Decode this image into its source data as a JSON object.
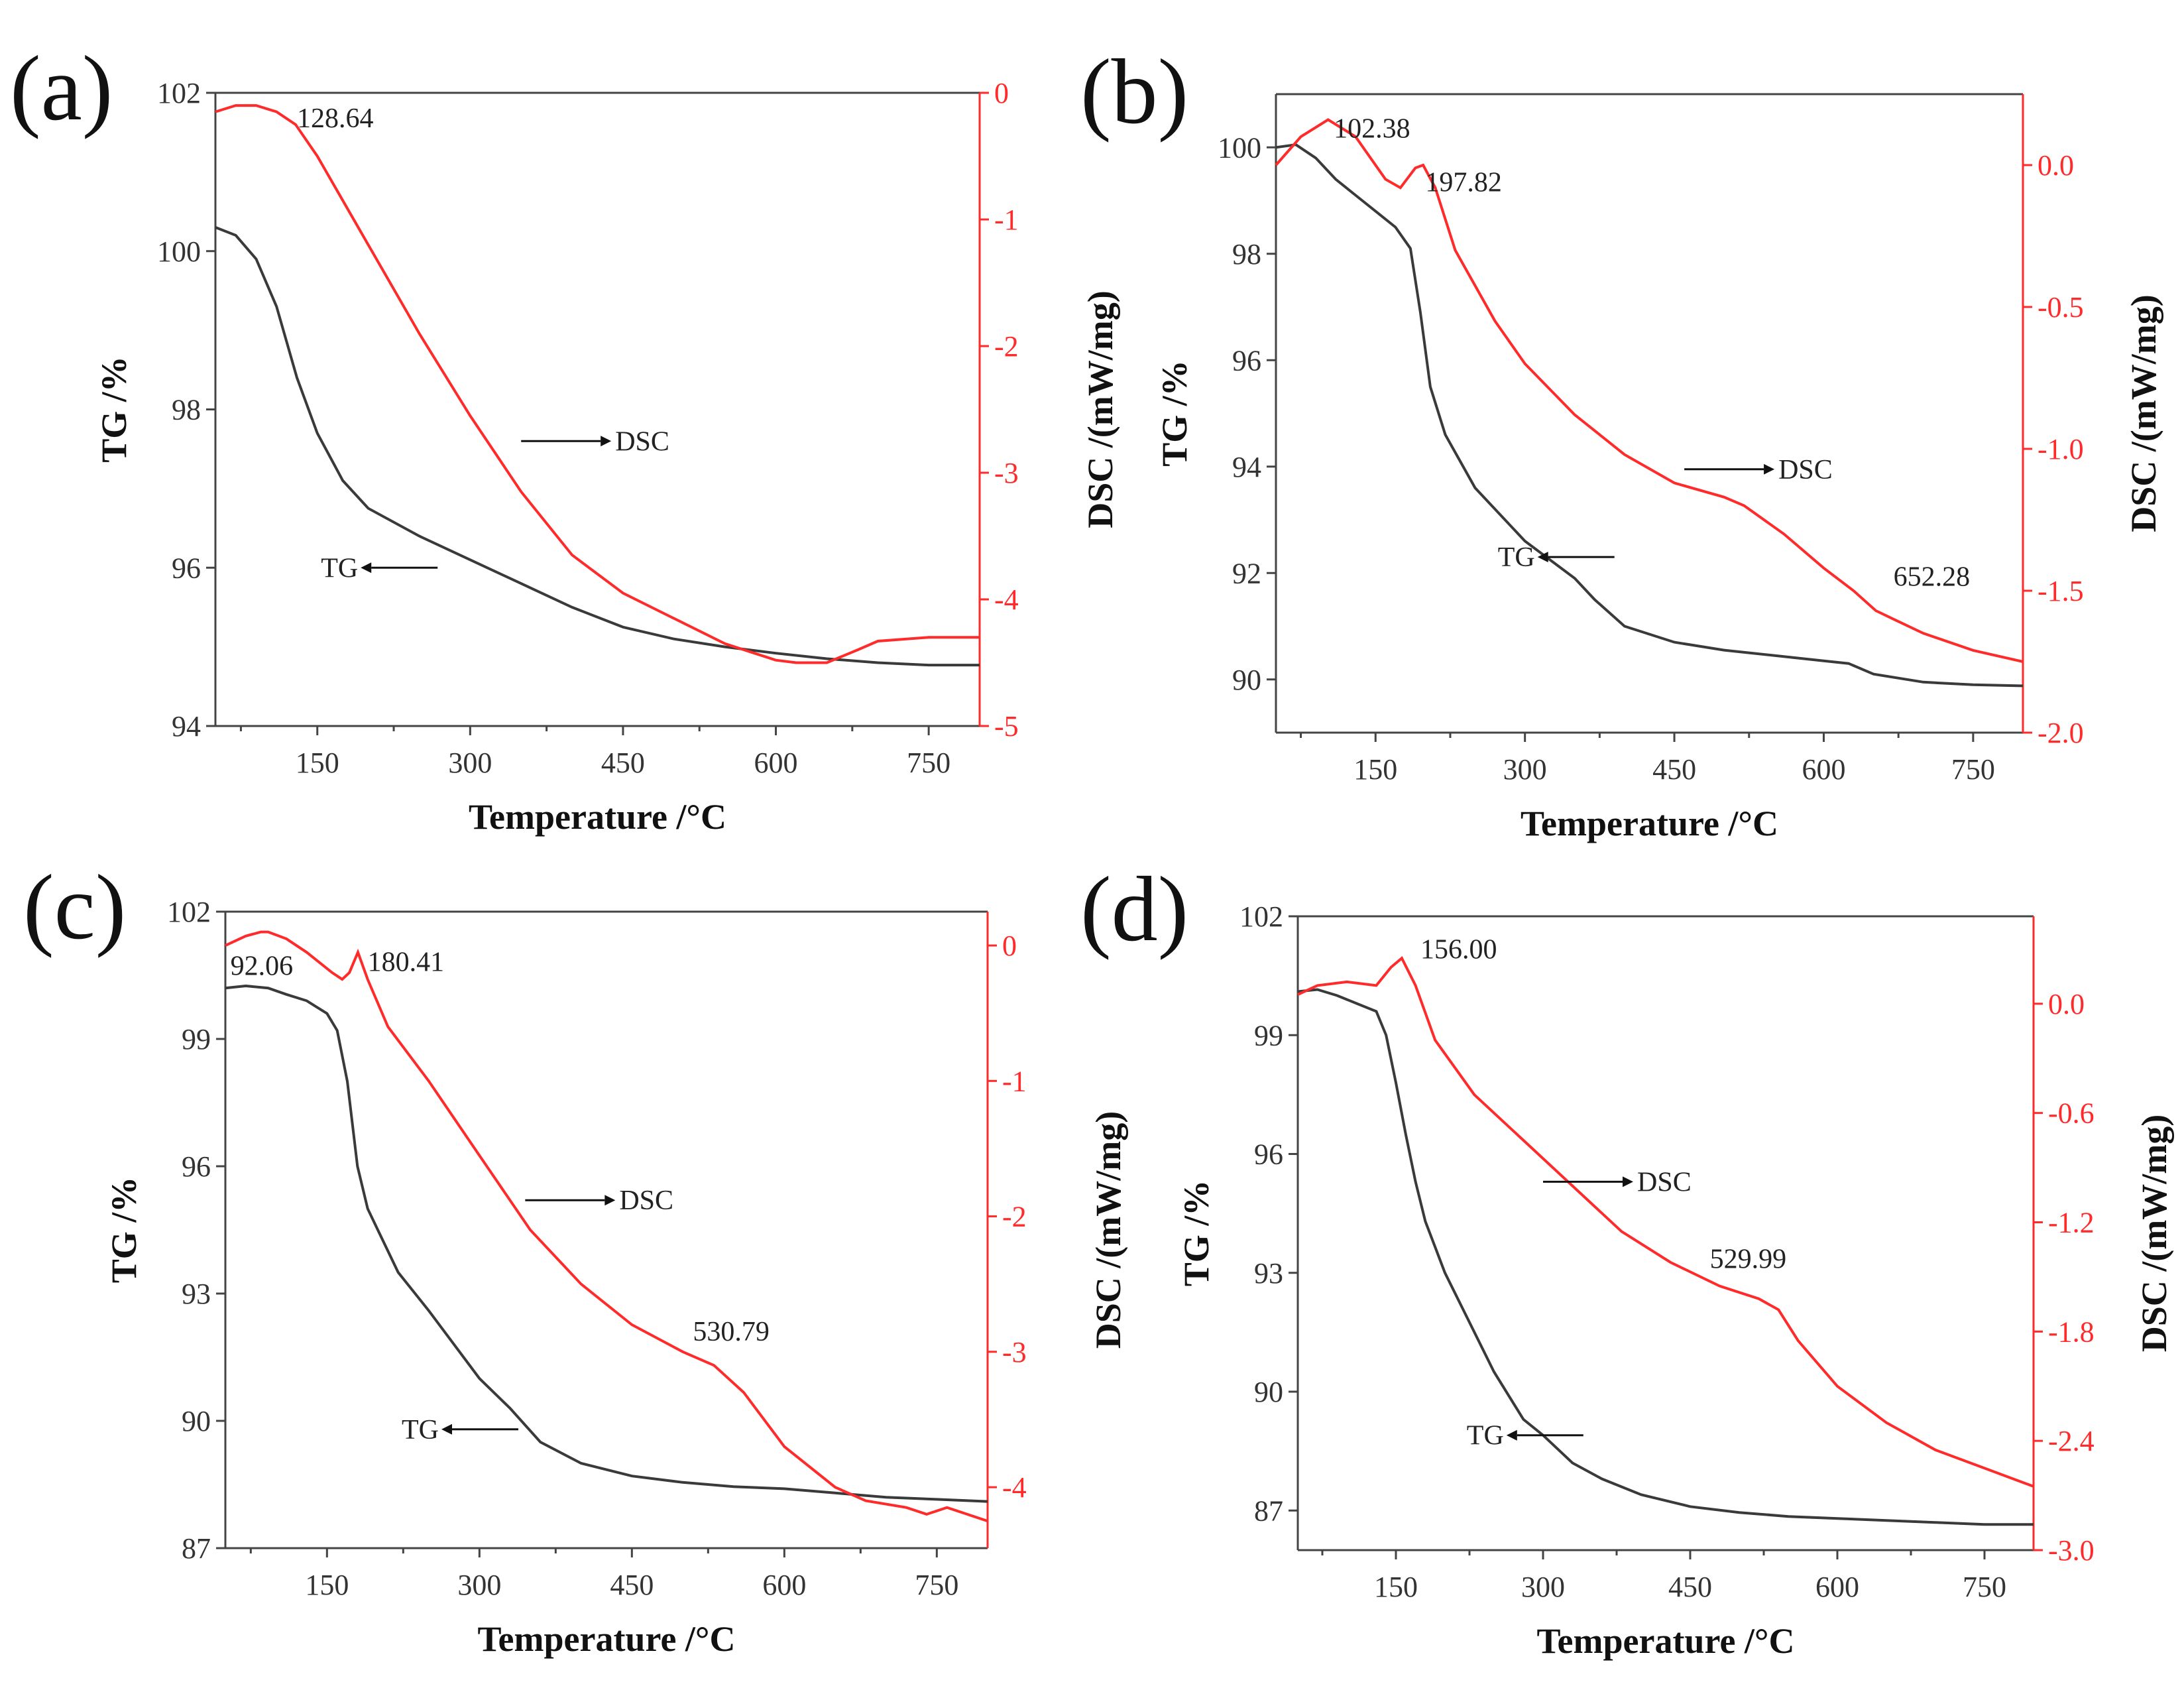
{
  "chart_data": [
    {
      "type": "line",
      "panel_label": "(a)",
      "xlabel": "Temperature /°C",
      "ylabel_left": "TG /%",
      "ylabel_right": "DSC /(mW/mg)",
      "xlim": [
        50,
        800
      ],
      "ylim_left": [
        94,
        102
      ],
      "ylim_right": [
        -5,
        0
      ],
      "xticks": [
        150,
        300,
        450,
        600,
        750
      ],
      "yticks_left": [
        94,
        96,
        98,
        100,
        102
      ],
      "yticks_right": [
        -5,
        -4,
        -3,
        -2,
        -1,
        0
      ],
      "ytick_decimals_right": 0,
      "series": [
        {
          "name": "TG",
          "axis": "left",
          "color": "#3a3a3a",
          "x": [
            50,
            70,
            90,
            110,
            130,
            150,
            175,
            200,
            250,
            300,
            350,
            400,
            450,
            500,
            550,
            600,
            650,
            700,
            750,
            800
          ],
          "y": [
            100.3,
            100.2,
            99.9,
            99.3,
            98.4,
            97.7,
            97.1,
            96.75,
            96.4,
            96.1,
            95.8,
            95.5,
            95.25,
            95.1,
            95.0,
            94.92,
            94.85,
            94.8,
            94.77,
            94.77
          ]
        },
        {
          "name": "DSC",
          "axis": "right",
          "color": "#ff2a2a",
          "x": [
            50,
            70,
            90,
            110,
            128.64,
            150,
            200,
            250,
            300,
            350,
            400,
            450,
            500,
            550,
            600,
            620,
            650,
            680,
            700,
            750,
            800
          ],
          "y": [
            -0.15,
            -0.1,
            -0.1,
            -0.15,
            -0.25,
            -0.5,
            -1.2,
            -1.9,
            -2.55,
            -3.15,
            -3.65,
            -3.95,
            -4.15,
            -4.35,
            -4.48,
            -4.5,
            -4.5,
            -4.4,
            -4.33,
            -4.3,
            -4.3
          ]
        }
      ],
      "annotations": [
        {
          "text": "128.64",
          "x": 130,
          "y_right": -0.2
        },
        {
          "text": "DSC",
          "type": "arrow-right",
          "x": 350,
          "y_left": 97.6
        },
        {
          "text": "TG",
          "type": "arrow-left",
          "x": 190,
          "y_left": 96.0
        }
      ]
    },
    {
      "type": "line",
      "panel_label": "(b)",
      "xlabel": "Temperature /°C",
      "ylabel_left": "TG /%",
      "ylabel_right": "DSC /(mW/mg)",
      "xlim": [
        50,
        800
      ],
      "ylim_left": [
        89,
        101
      ],
      "ylim_right": [
        -2.0,
        0.25
      ],
      "xticks": [
        150,
        300,
        450,
        600,
        750
      ],
      "yticks_left": [
        90,
        92,
        94,
        96,
        98,
        100
      ],
      "yticks_right": [
        -2.0,
        -1.5,
        -1.0,
        -0.5,
        0.0
      ],
      "ytick_decimals_right": 1,
      "series": [
        {
          "name": "TG",
          "axis": "left",
          "color": "#3a3a3a",
          "x": [
            50,
            70,
            90,
            110,
            130,
            150,
            170,
            185,
            195,
            205,
            220,
            250,
            300,
            350,
            370,
            400,
            450,
            500,
            550,
            600,
            625,
            650,
            700,
            750,
            800
          ],
          "y": [
            100.0,
            100.05,
            99.8,
            99.4,
            99.1,
            98.8,
            98.5,
            98.1,
            96.9,
            95.5,
            94.6,
            93.6,
            92.6,
            91.9,
            91.5,
            91.0,
            90.7,
            90.55,
            90.45,
            90.35,
            90.3,
            90.1,
            89.95,
            89.9,
            89.88
          ]
        },
        {
          "name": "DSC",
          "axis": "right",
          "color": "#ff2a2a",
          "x": [
            50,
            75,
            102.38,
            130,
            160,
            175,
            190,
            197.82,
            210,
            230,
            270,
            300,
            350,
            400,
            450,
            500,
            520,
            560,
            600,
            630,
            652.28,
            670,
            700,
            750,
            800
          ],
          "y": [
            0.0,
            0.1,
            0.16,
            0.1,
            -0.05,
            -0.08,
            -0.01,
            0.0,
            -0.08,
            -0.3,
            -0.55,
            -0.7,
            -0.88,
            -1.02,
            -1.12,
            -1.17,
            -1.2,
            -1.3,
            -1.42,
            -1.5,
            -1.57,
            -1.6,
            -1.65,
            -1.71,
            -1.75
          ]
        }
      ],
      "annotations": [
        {
          "text": "102.38",
          "x": 108,
          "y_right": 0.13
        },
        {
          "text": "197.82",
          "x": 200,
          "y_right": -0.06
        },
        {
          "text": "652.28",
          "x": 670,
          "y_right": -1.45
        },
        {
          "text": "DSC",
          "type": "arrow-right",
          "x": 460,
          "y_left": 93.95
        },
        {
          "text": "TG",
          "type": "arrow-left",
          "x": 310,
          "y_left": 92.3
        }
      ]
    },
    {
      "type": "line",
      "panel_label": "(c)",
      "xlabel": "Temperature /°C",
      "ylabel_left": "TG /%",
      "ylabel_right": "DSC /(mW/mg)",
      "xlim": [
        50,
        800
      ],
      "ylim_left": [
        87,
        102
      ],
      "ylim_right": [
        -4.45,
        0.25
      ],
      "xticks": [
        150,
        300,
        450,
        600,
        750
      ],
      "yticks_left": [
        87,
        90,
        93,
        96,
        99,
        102
      ],
      "yticks_right": [
        -4,
        -3,
        -2,
        -1,
        0
      ],
      "ytick_decimals_right": 0,
      "series": [
        {
          "name": "TG",
          "axis": "left",
          "color": "#3a3a3a",
          "x": [
            50,
            70,
            92.06,
            110,
            130,
            150,
            160,
            170,
            180,
            190,
            200,
            220,
            250,
            300,
            330,
            360,
            400,
            450,
            500,
            550,
            600,
            650,
            700,
            750,
            800
          ],
          "y": [
            100.2,
            100.25,
            100.2,
            100.05,
            99.9,
            99.6,
            99.2,
            98.0,
            96.0,
            95.0,
            94.5,
            93.5,
            92.6,
            91.0,
            90.3,
            89.5,
            89.0,
            88.7,
            88.55,
            88.45,
            88.4,
            88.3,
            88.2,
            88.15,
            88.1
          ]
        },
        {
          "name": "DSC",
          "axis": "right",
          "color": "#ff2a2a",
          "x": [
            50,
            70,
            85,
            92.06,
            110,
            130,
            155,
            165,
            172,
            180.41,
            190,
            210,
            250,
            300,
            350,
            400,
            450,
            500,
            530.79,
            560,
            600,
            650,
            680,
            720,
            740,
            760,
            780,
            800
          ],
          "y": [
            0.0,
            0.07,
            0.1,
            0.1,
            0.05,
            -0.05,
            -0.2,
            -0.25,
            -0.2,
            -0.05,
            -0.25,
            -0.6,
            -1.0,
            -1.55,
            -2.1,
            -2.5,
            -2.8,
            -3.0,
            -3.1,
            -3.3,
            -3.7,
            -4.0,
            -4.1,
            -4.15,
            -4.2,
            -4.15,
            -4.2,
            -4.25
          ]
        }
      ],
      "annotations": [
        {
          "text": "92.06",
          "x": 55,
          "y_right": -0.15
        },
        {
          "text": "180.41",
          "x": 190,
          "y_right": -0.12
        },
        {
          "text": "530.79",
          "x": 510,
          "y_right": -2.85
        },
        {
          "text": "DSC",
          "type": "arrow-right",
          "x": 345,
          "y_left": 95.2
        },
        {
          "text": "TG",
          "type": "arrow-left",
          "x": 260,
          "y_left": 89.8
        }
      ]
    },
    {
      "type": "line",
      "panel_label": "(d)",
      "xlabel": "Temperature /°C",
      "ylabel_left": "TG /%",
      "ylabel_right": "DSC /(mW/mg)",
      "xlim": [
        50,
        800
      ],
      "ylim_left": [
        86,
        102
      ],
      "ylim_right": [
        -3.0,
        0.48
      ],
      "xticks": [
        150,
        300,
        450,
        600,
        750
      ],
      "yticks_left": [
        87,
        90,
        93,
        96,
        99,
        102
      ],
      "yticks_right": [
        -3.0,
        -2.4,
        -1.8,
        -1.2,
        -0.6,
        0.0
      ],
      "ytick_decimals_right": 1,
      "series": [
        {
          "name": "TG",
          "axis": "left",
          "color": "#3a3a3a",
          "x": [
            50,
            70,
            90,
            110,
            130,
            140,
            150,
            160,
            170,
            180,
            200,
            220,
            250,
            280,
            300,
            330,
            360,
            400,
            450,
            500,
            550,
            600,
            650,
            700,
            750,
            800
          ],
          "y": [
            100.1,
            100.15,
            100.0,
            99.8,
            99.6,
            99.0,
            97.8,
            96.5,
            95.3,
            94.3,
            93.0,
            92.0,
            90.5,
            89.3,
            88.9,
            88.2,
            87.8,
            87.4,
            87.1,
            86.95,
            86.85,
            86.8,
            86.75,
            86.7,
            86.65,
            86.65
          ]
        },
        {
          "name": "DSC",
          "axis": "right",
          "color": "#ff2a2a",
          "x": [
            50,
            70,
            100,
            130,
            145,
            156.0,
            170,
            190,
            230,
            280,
            330,
            380,
            430,
            480,
            520,
            540,
            560,
            600,
            650,
            700,
            750,
            800
          ],
          "y": [
            0.05,
            0.1,
            0.12,
            0.1,
            0.2,
            0.25,
            0.1,
            -0.2,
            -0.5,
            -0.75,
            -1.0,
            -1.25,
            -1.42,
            -1.55,
            -1.62,
            -1.68,
            -1.85,
            -2.1,
            -2.3,
            -2.45,
            -2.55,
            -2.65
          ]
        }
      ],
      "annotations": [
        {
          "text": "156.00",
          "x": 175,
          "y_right": 0.3
        },
        {
          "text": "529.99",
          "x": 470,
          "y_right": -1.4
        },
        {
          "text": "DSC",
          "type": "arrow-right",
          "x": 300,
          "y_left": 95.3
        },
        {
          "text": "TG",
          "type": "arrow-left",
          "x": 260,
          "y_left": 88.9
        }
      ]
    }
  ]
}
